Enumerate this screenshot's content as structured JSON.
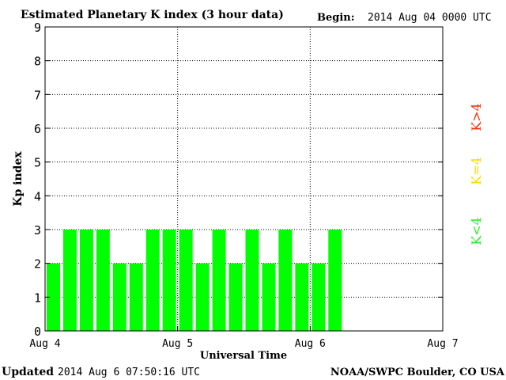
{
  "header": {
    "title": "Estimated Planetary K index (3 hour data)",
    "begin_label": "Begin:",
    "begin_value": "2014 Aug 04 0000 UTC"
  },
  "footer": {
    "updated_label": "Updated",
    "updated_value": "2014 Aug  6 07:50:16 UTC",
    "source": "NOAA/SWPC Boulder, CO USA"
  },
  "legend": {
    "items": [
      {
        "label": "K>4",
        "color": "#ff2a00"
      },
      {
        "label": "K=4",
        "color": "#ffd700"
      },
      {
        "label": "K<4",
        "color": "#22ee22"
      }
    ]
  },
  "chart_data": {
    "type": "bar",
    "xlabel": "Universal Time",
    "ylabel": "Kp index",
    "ylim": [
      0,
      9
    ],
    "yticks": [
      "0",
      "1",
      "2",
      "3",
      "4",
      "5",
      "6",
      "7",
      "8",
      "9"
    ],
    "xtick_labels": [
      "Aug 4",
      "Aug 5",
      "Aug 6",
      "Aug 7"
    ],
    "grid": true,
    "bar_color": "#00ff00",
    "values": [
      2,
      3,
      3,
      3,
      2,
      2,
      3,
      3,
      3,
      2,
      3,
      2,
      3,
      2,
      3,
      2,
      2,
      3
    ]
  }
}
